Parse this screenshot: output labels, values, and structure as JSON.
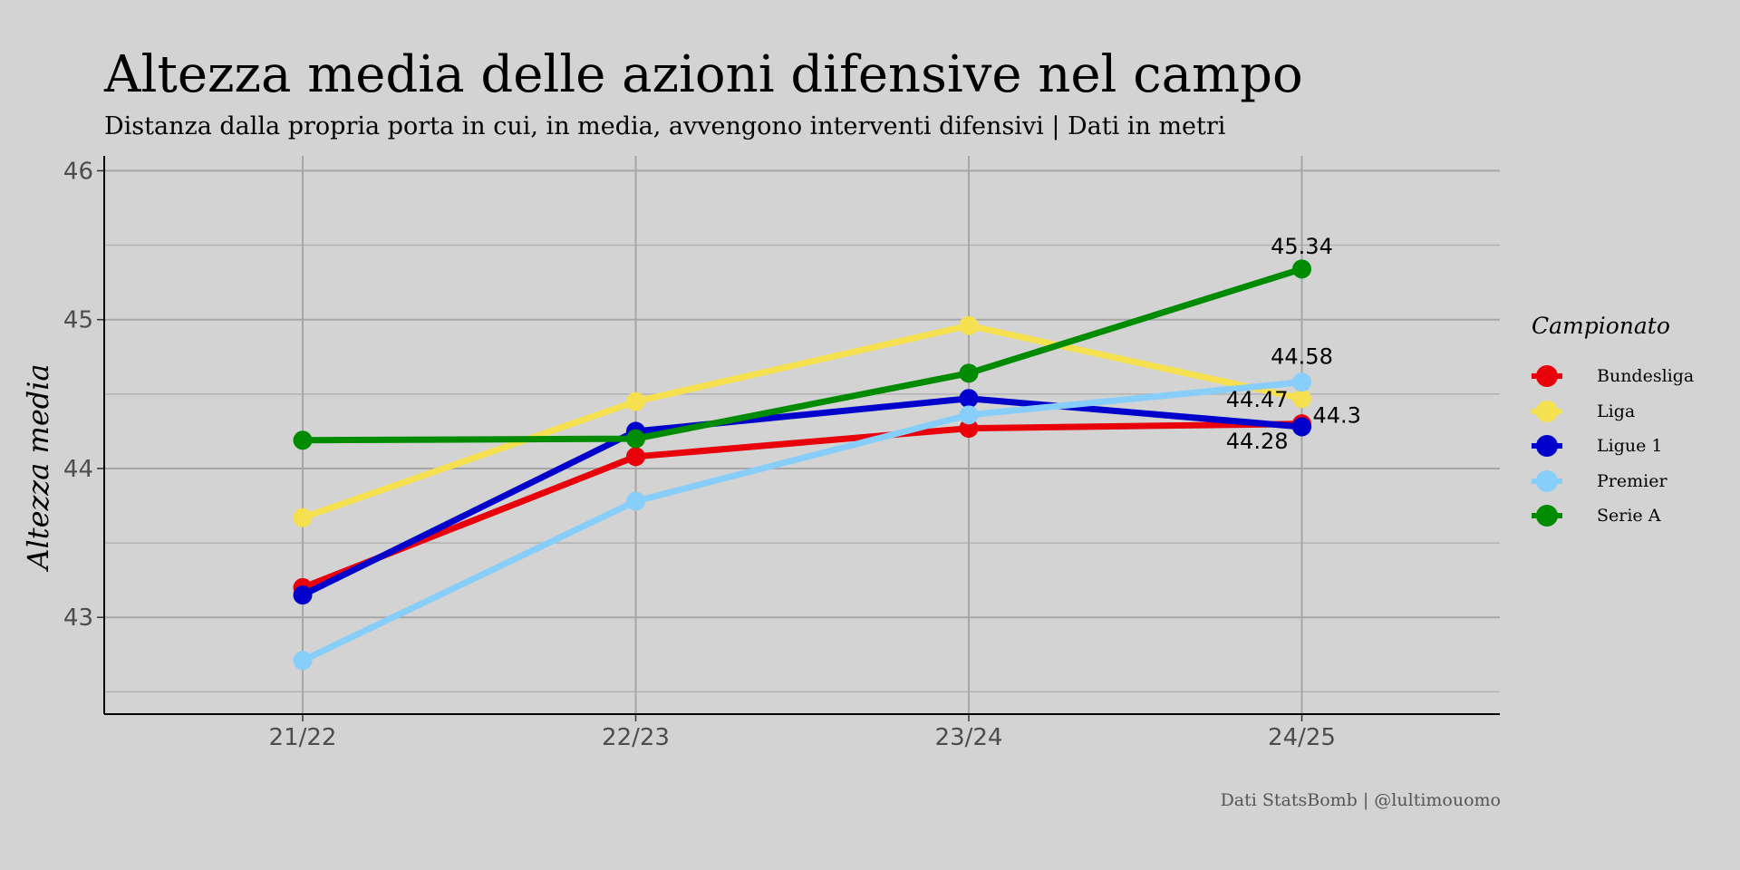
{
  "chart_data": {
    "type": "line",
    "title": "Altezza media delle azioni difensive nel campo",
    "subtitle": "Distanza dalla propria porta in cui, in media, avvengono interventi difensivi | Dati in metri",
    "xlabel": "",
    "ylabel": "Altezza media",
    "caption": "Dati StatsBomb | @lultimouomo",
    "categories": [
      "21/22",
      "22/23",
      "23/24",
      "24/25"
    ],
    "ylim": [
      42.35,
      46.1
    ],
    "yticks": [
      "43",
      "44",
      "45",
      "46"
    ],
    "grid": true,
    "legend_title": "Campionato",
    "legend_position": "right",
    "series": [
      {
        "name": "Bundesliga",
        "color": "#e8000b",
        "values": [
          43.2,
          44.08,
          44.27,
          44.3
        ]
      },
      {
        "name": "Liga",
        "color": "#f5e04f",
        "values": [
          43.67,
          44.45,
          44.96,
          44.47
        ]
      },
      {
        "name": "Ligue 1",
        "color": "#0000cc",
        "values": [
          43.15,
          44.25,
          44.47,
          44.28
        ]
      },
      {
        "name": "Premier",
        "color": "#87cefa",
        "values": [
          42.71,
          43.78,
          44.36,
          44.58
        ]
      },
      {
        "name": "Serie A",
        "color": "#008b00",
        "values": [
          44.19,
          44.2,
          44.64,
          45.34
        ]
      }
    ],
    "annotations": [
      {
        "text": "45.34",
        "series": "Serie A",
        "category": "24/25"
      },
      {
        "text": "44.58",
        "series": "Premier",
        "category": "24/25"
      },
      {
        "text": "44.47",
        "series": "Liga",
        "category": "24/25"
      },
      {
        "text": "44.3",
        "series": "Bundesliga",
        "category": "24/25"
      },
      {
        "text": "44.28",
        "series": "Ligue 1",
        "category": "24/25"
      }
    ]
  }
}
